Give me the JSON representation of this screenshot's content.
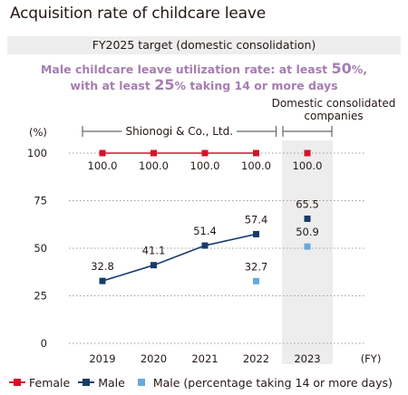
{
  "title": "Acquisition rate of childcare leave",
  "target": {
    "title": "FY2025 target (domestic consolidation)",
    "line1_pre": "Male childcare leave utilization rate: at least ",
    "line1_value": "50",
    "line1_post": "%,",
    "line2_pre": "with at least ",
    "line2_value": "25",
    "line2_post": "% taking 14 or more days"
  },
  "colors": {
    "female": "#d7102a",
    "male": "#173c6b",
    "male14": "#66a9dc",
    "highlight": "#ededed",
    "grid": "#9e9e9e",
    "bracket": "#666666"
  },
  "chart_data": {
    "type": "line",
    "y_unit": "(%)",
    "x_unit": "(FY)",
    "categories": [
      "2019",
      "2020",
      "2021",
      "2022",
      "2023"
    ],
    "ylim": [
      0,
      100
    ],
    "yticks": [
      "0",
      "25",
      "50",
      "75",
      "100"
    ],
    "grid": "dotted horizontal",
    "groups": [
      {
        "label": "Shionogi & Co., Ltd.",
        "from": "2019",
        "to": "2022"
      },
      {
        "label": "Domestic consolidated companies",
        "from": "2023",
        "to": "2023"
      }
    ],
    "series": [
      {
        "name": "Female",
        "values": [
          100.0,
          100.0,
          100.0,
          100.0,
          100.0
        ],
        "labels": [
          "100.0",
          "100.0",
          "100.0",
          "100.0",
          "100.0"
        ],
        "connected_until": "2022"
      },
      {
        "name": "Male",
        "values": [
          32.8,
          41.1,
          51.4,
          57.4,
          65.5
        ],
        "labels": [
          "32.8",
          "41.1",
          "51.4",
          "57.4",
          "65.5"
        ],
        "connected_until": "2022"
      },
      {
        "name": "Male (percentage taking 14 or more days)",
        "values": [
          null,
          null,
          null,
          32.7,
          50.9
        ],
        "labels": [
          "",
          "",
          "",
          "32.7",
          "50.9"
        ],
        "connected_until": "none"
      }
    ]
  }
}
